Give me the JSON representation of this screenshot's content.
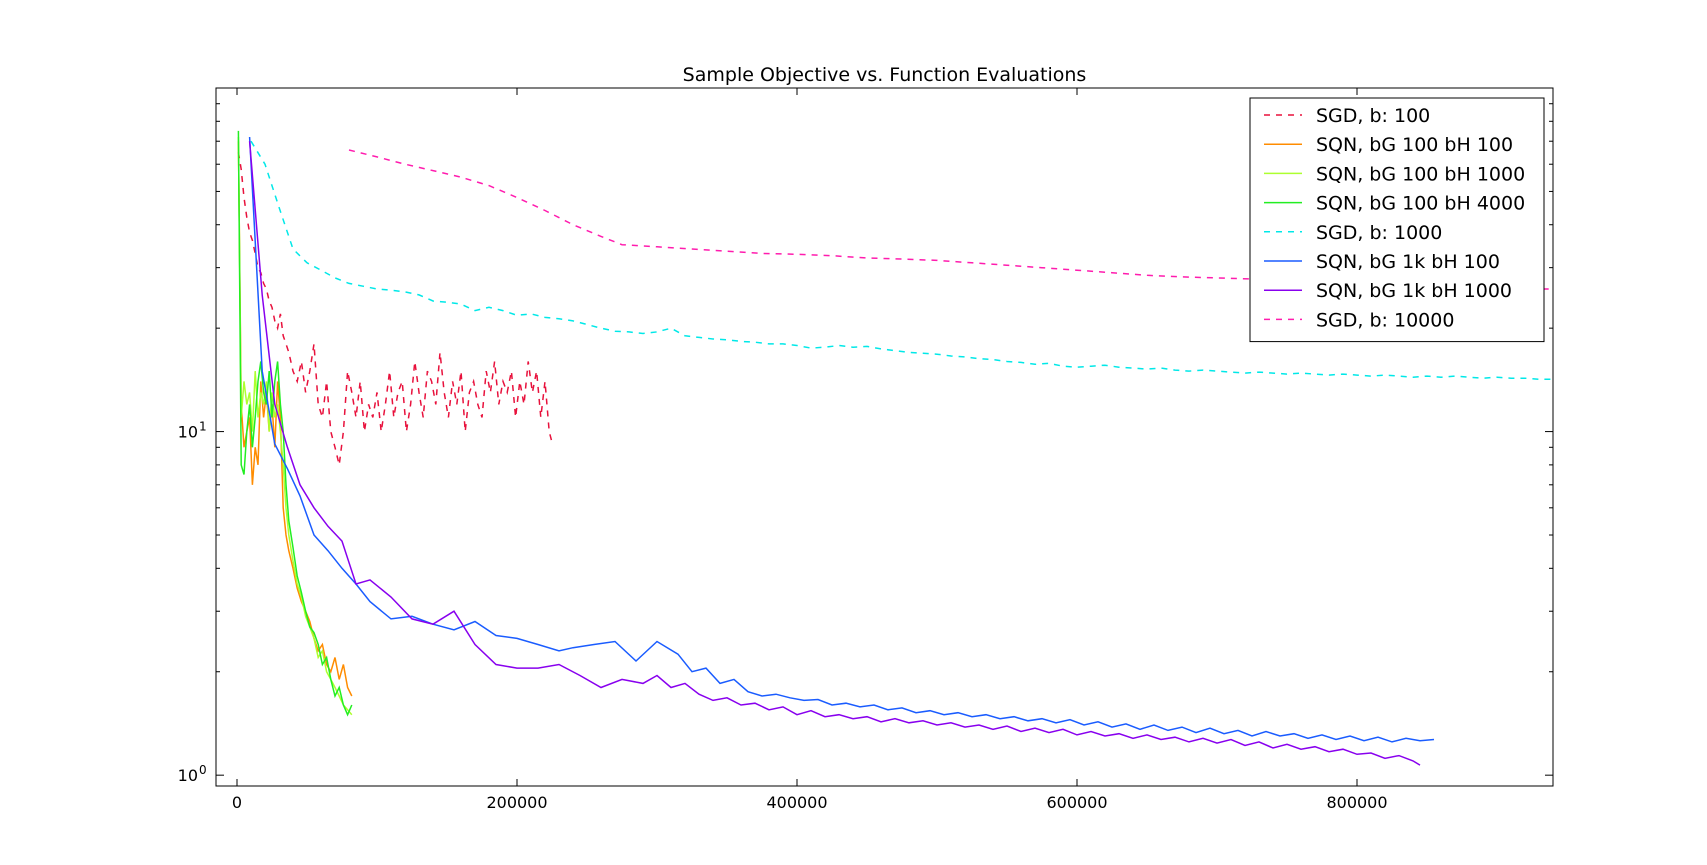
{
  "chart_data": {
    "type": "line",
    "title": "Sample Objective vs. Function Evaluations",
    "xlabel": "",
    "ylabel": "",
    "xlim": [
      -15000,
      940000
    ],
    "ylim": [
      0.93,
      100
    ],
    "yscale": "log",
    "grid": false,
    "legend_position": "top-right",
    "x_ticks": [
      0,
      200000,
      400000,
      600000,
      800000
    ],
    "x_tick_labels": [
      "0",
      "200000",
      "400000",
      "600000",
      "800000"
    ],
    "y_major_ticks": [
      1,
      10
    ],
    "y_tick_labels": [
      "10",
      "10"
    ],
    "y_tick_exponents": [
      "0",
      "1"
    ],
    "series": [
      {
        "name": "SGD, b: 100",
        "color": "#e8113c",
        "dash": "dashed",
        "x": [
          1000,
          3000,
          5000,
          7000,
          9000,
          11000,
          13000,
          15000,
          17000,
          19000,
          21000,
          23000,
          25000,
          27000,
          29000,
          31000,
          33000,
          35000,
          37000,
          40000,
          43000,
          46000,
          49000,
          52000,
          55000,
          58000,
          61000,
          64000,
          67000,
          70000,
          73000,
          76000,
          79000,
          82000,
          85000,
          88000,
          91000,
          94000,
          97000,
          100000,
          103000,
          106000,
          109000,
          112000,
          115000,
          118000,
          121000,
          124000,
          127000,
          130000,
          133000,
          136000,
          139000,
          142000,
          145000,
          148000,
          151000,
          154000,
          157000,
          160000,
          163000,
          166000,
          169000,
          172000,
          175000,
          178000,
          181000,
          184000,
          187000,
          190000,
          193000,
          196000,
          199000,
          202000,
          205000,
          208000,
          211000,
          214000,
          217000,
          220000,
          223000,
          225000
        ],
        "values": [
          65,
          58,
          48,
          42,
          38,
          36,
          33,
          30,
          29,
          27,
          26,
          24,
          23,
          21,
          20,
          22,
          19,
          18,
          17,
          15,
          14,
          16,
          13,
          15,
          18,
          12,
          11,
          14,
          10,
          9,
          8,
          10,
          15,
          13,
          11,
          14,
          10,
          12,
          11,
          13,
          10,
          12,
          15,
          11,
          13,
          14,
          10,
          12,
          16,
          13,
          11,
          15,
          14,
          12,
          17,
          13,
          11,
          14,
          12,
          15,
          10,
          13,
          14,
          12,
          11,
          15,
          13,
          16,
          12,
          14,
          13,
          15,
          11,
          14,
          12,
          16,
          13,
          15,
          11,
          14,
          10,
          9.3
        ]
      },
      {
        "name": "SQN, bG 100 bH 100",
        "color": "#ff8c00",
        "dash": "solid",
        "x": [
          1000,
          3000,
          5000,
          7000,
          9000,
          11000,
          13000,
          15000,
          17000,
          19000,
          21000,
          23000,
          25000,
          27000,
          29000,
          31000,
          33000,
          35000,
          37000,
          40000,
          43000,
          46000,
          49000,
          52000,
          55000,
          58000,
          61000,
          64000,
          67000,
          70000,
          73000,
          76000,
          79000,
          82000
        ],
        "values": [
          70,
          12,
          9,
          10,
          11,
          7,
          9,
          8,
          14,
          11,
          13,
          10,
          12,
          9,
          14,
          11,
          6,
          5,
          4.5,
          4,
          3.5,
          3.2,
          3.0,
          2.8,
          2.5,
          2.3,
          2.4,
          2.1,
          2.0,
          2.2,
          1.9,
          2.1,
          1.8,
          1.7
        ]
      },
      {
        "name": "SQN, bG 100 bH 1000",
        "color": "#adff2f",
        "dash": "solid",
        "x": [
          1000,
          3000,
          5000,
          7000,
          9000,
          11000,
          13000,
          15000,
          17000,
          19000,
          21000,
          23000,
          25000,
          27000,
          29000,
          31000,
          33000,
          35000,
          37000,
          40000,
          43000,
          46000,
          49000,
          52000,
          55000,
          58000,
          61000,
          64000,
          67000,
          70000,
          73000,
          76000,
          79000,
          82000
        ],
        "values": [
          72,
          11,
          14,
          12,
          13,
          10,
          15,
          11,
          13,
          12,
          14,
          10,
          13,
          11,
          12,
          10,
          8,
          6,
          5,
          4.2,
          3.6,
          3.3,
          2.9,
          2.7,
          2.5,
          2.2,
          2.3,
          2.0,
          1.9,
          1.8,
          1.7,
          1.6,
          1.55,
          1.5
        ]
      },
      {
        "name": "SQN, bG 100 bH 4000",
        "color": "#22ee22",
        "dash": "solid",
        "x": [
          1000,
          3000,
          5000,
          7000,
          9000,
          11000,
          13000,
          15000,
          17000,
          19000,
          21000,
          23000,
          25000,
          27000,
          29000,
          31000,
          33000,
          35000,
          37000,
          40000,
          43000,
          46000,
          49000,
          52000,
          55000,
          58000,
          61000,
          64000,
          67000,
          70000,
          73000,
          76000,
          79000,
          82000
        ],
        "values": [
          75,
          8,
          7.5,
          10,
          12,
          9,
          11,
          14,
          16,
          13,
          12,
          15,
          11,
          14,
          16,
          12,
          10,
          7,
          5.5,
          4.6,
          3.8,
          3.4,
          3.0,
          2.7,
          2.6,
          2.4,
          2.1,
          2.2,
          1.9,
          1.7,
          1.8,
          1.6,
          1.5,
          1.6
        ]
      },
      {
        "name": "SGD, b: 1000",
        "color": "#00e8e8",
        "dash": "dashed",
        "x": [
          10000,
          20000,
          30000,
          40000,
          50000,
          60000,
          70000,
          80000,
          90000,
          100000,
          110000,
          120000,
          130000,
          140000,
          150000,
          160000,
          170000,
          180000,
          190000,
          200000,
          210000,
          220000,
          230000,
          240000,
          250000,
          260000,
          270000,
          280000,
          290000,
          300000,
          310000,
          320000,
          330000,
          340000,
          350000,
          360000,
          370000,
          380000,
          390000,
          400000,
          410000,
          420000,
          430000,
          440000,
          450000,
          460000,
          470000,
          480000,
          490000,
          500000,
          510000,
          520000,
          530000,
          540000,
          550000,
          560000,
          570000,
          580000,
          590000,
          600000,
          610000,
          620000,
          630000,
          640000,
          650000,
          660000,
          670000,
          680000,
          690000,
          700000,
          710000,
          720000,
          730000,
          740000,
          750000,
          760000,
          770000,
          780000,
          790000,
          800000,
          810000,
          820000,
          830000,
          840000,
          850000,
          860000,
          870000,
          880000,
          890000,
          900000,
          910000,
          920000,
          930000,
          940000
        ],
        "values": [
          70,
          60,
          45,
          34,
          31,
          29.5,
          28,
          27,
          26.5,
          26,
          25.8,
          25.5,
          25,
          24,
          23.8,
          23.5,
          22.5,
          23,
          22.5,
          21.8,
          22,
          21.5,
          21.3,
          21,
          20.5,
          20,
          19.6,
          19.5,
          19.3,
          19.5,
          20,
          19,
          18.8,
          18.6,
          18.5,
          18.3,
          18.2,
          18,
          18,
          17.8,
          17.5,
          17.6,
          17.8,
          17.6,
          17.7,
          17.4,
          17.2,
          17,
          16.9,
          16.8,
          16.6,
          16.5,
          16.3,
          16.2,
          16,
          15.9,
          15.7,
          15.8,
          15.5,
          15.4,
          15.5,
          15.6,
          15.4,
          15.3,
          15.2,
          15.3,
          15.1,
          15,
          15.1,
          15,
          14.9,
          14.8,
          14.9,
          14.8,
          14.7,
          14.8,
          14.7,
          14.6,
          14.7,
          14.6,
          14.5,
          14.6,
          14.5,
          14.4,
          14.5,
          14.4,
          14.5,
          14.4,
          14.3,
          14.4,
          14.3,
          14.3,
          14.2,
          14.2
        ]
      },
      {
        "name": "SQN, bG 1k bH 100",
        "color": "#1a5cff",
        "dash": "solid",
        "x": [
          9000,
          18000,
          27000,
          36000,
          45000,
          55000,
          65000,
          75000,
          85000,
          95000,
          110000,
          125000,
          140000,
          155000,
          170000,
          185000,
          200000,
          215000,
          230000,
          240000,
          255000,
          270000,
          285000,
          300000,
          315000,
          325000,
          335000,
          345000,
          355000,
          365000,
          375000,
          385000,
          395000,
          405000,
          415000,
          425000,
          435000,
          445000,
          455000,
          465000,
          475000,
          485000,
          495000,
          505000,
          515000,
          525000,
          535000,
          545000,
          555000,
          565000,
          575000,
          585000,
          595000,
          605000,
          615000,
          625000,
          635000,
          645000,
          655000,
          665000,
          675000,
          685000,
          695000,
          705000,
          715000,
          725000,
          735000,
          745000,
          755000,
          765000,
          775000,
          785000,
          795000,
          805000,
          815000,
          825000,
          835000,
          845000,
          855000
        ],
        "values": [
          72,
          15,
          9.2,
          7.8,
          6.5,
          5.0,
          4.5,
          4.0,
          3.6,
          3.2,
          2.85,
          2.9,
          2.75,
          2.65,
          2.8,
          2.55,
          2.5,
          2.4,
          2.3,
          2.35,
          2.4,
          2.45,
          2.15,
          2.45,
          2.25,
          2.0,
          2.05,
          1.85,
          1.9,
          1.75,
          1.7,
          1.72,
          1.68,
          1.65,
          1.66,
          1.6,
          1.62,
          1.58,
          1.6,
          1.55,
          1.57,
          1.52,
          1.54,
          1.5,
          1.52,
          1.48,
          1.5,
          1.46,
          1.48,
          1.44,
          1.46,
          1.42,
          1.45,
          1.4,
          1.43,
          1.38,
          1.41,
          1.36,
          1.4,
          1.35,
          1.38,
          1.33,
          1.37,
          1.32,
          1.35,
          1.3,
          1.34,
          1.3,
          1.32,
          1.28,
          1.31,
          1.27,
          1.3,
          1.26,
          1.29,
          1.25,
          1.28,
          1.26,
          1.27
        ]
      },
      {
        "name": "SQN, bG 1k bH 1000",
        "color": "#8800ee",
        "dash": "solid",
        "x": [
          9000,
          18000,
          27000,
          36000,
          45000,
          55000,
          65000,
          75000,
          85000,
          95000,
          110000,
          125000,
          140000,
          155000,
          170000,
          185000,
          200000,
          215000,
          230000,
          245000,
          260000,
          275000,
          290000,
          300000,
          310000,
          320000,
          330000,
          340000,
          350000,
          360000,
          370000,
          380000,
          390000,
          400000,
          410000,
          420000,
          430000,
          440000,
          450000,
          460000,
          470000,
          480000,
          490000,
          500000,
          510000,
          520000,
          530000,
          540000,
          550000,
          560000,
          570000,
          580000,
          590000,
          600000,
          610000,
          620000,
          630000,
          640000,
          650000,
          660000,
          670000,
          680000,
          690000,
          700000,
          710000,
          720000,
          730000,
          740000,
          750000,
          760000,
          770000,
          780000,
          790000,
          800000,
          810000,
          820000,
          830000,
          840000,
          845000
        ],
        "values": [
          70,
          25,
          12,
          9.0,
          7.0,
          6.0,
          5.3,
          4.8,
          3.6,
          3.7,
          3.3,
          2.85,
          2.75,
          3.0,
          2.4,
          2.1,
          2.05,
          2.05,
          2.1,
          1.95,
          1.8,
          1.9,
          1.85,
          1.95,
          1.8,
          1.85,
          1.72,
          1.65,
          1.68,
          1.6,
          1.62,
          1.55,
          1.58,
          1.5,
          1.54,
          1.48,
          1.5,
          1.46,
          1.48,
          1.43,
          1.46,
          1.42,
          1.44,
          1.4,
          1.42,
          1.38,
          1.4,
          1.36,
          1.39,
          1.34,
          1.37,
          1.33,
          1.36,
          1.31,
          1.34,
          1.3,
          1.32,
          1.28,
          1.31,
          1.27,
          1.29,
          1.25,
          1.28,
          1.24,
          1.27,
          1.22,
          1.25,
          1.2,
          1.23,
          1.19,
          1.21,
          1.17,
          1.19,
          1.15,
          1.16,
          1.12,
          1.14,
          1.1,
          1.07
        ]
      },
      {
        "name": "SGD, b: 10000",
        "color": "#ff1cae",
        "dash": "dashed",
        "x": [
          80000,
          100000,
          120000,
          140000,
          160000,
          180000,
          200000,
          220000,
          240000,
          260000,
          275000,
          300000,
          325000,
          350000,
          375000,
          400000,
          425000,
          450000,
          475000,
          500000,
          525000,
          550000,
          575000,
          600000,
          625000,
          650000,
          675000,
          700000,
          725000,
          750000,
          775000,
          800000,
          825000,
          850000,
          875000,
          900000,
          925000,
          940000
        ],
        "values": [
          66,
          63,
          60,
          57.5,
          55,
          52,
          48,
          44,
          40,
          37,
          35,
          34.5,
          34,
          33.5,
          33,
          32.8,
          32.5,
          32,
          31.8,
          31.5,
          31,
          30.5,
          30,
          29.5,
          29,
          28.5,
          28.2,
          28,
          27.8,
          27.5,
          27.2,
          27,
          26.8,
          26.5,
          26.3,
          26.2,
          26,
          26
        ]
      }
    ]
  }
}
